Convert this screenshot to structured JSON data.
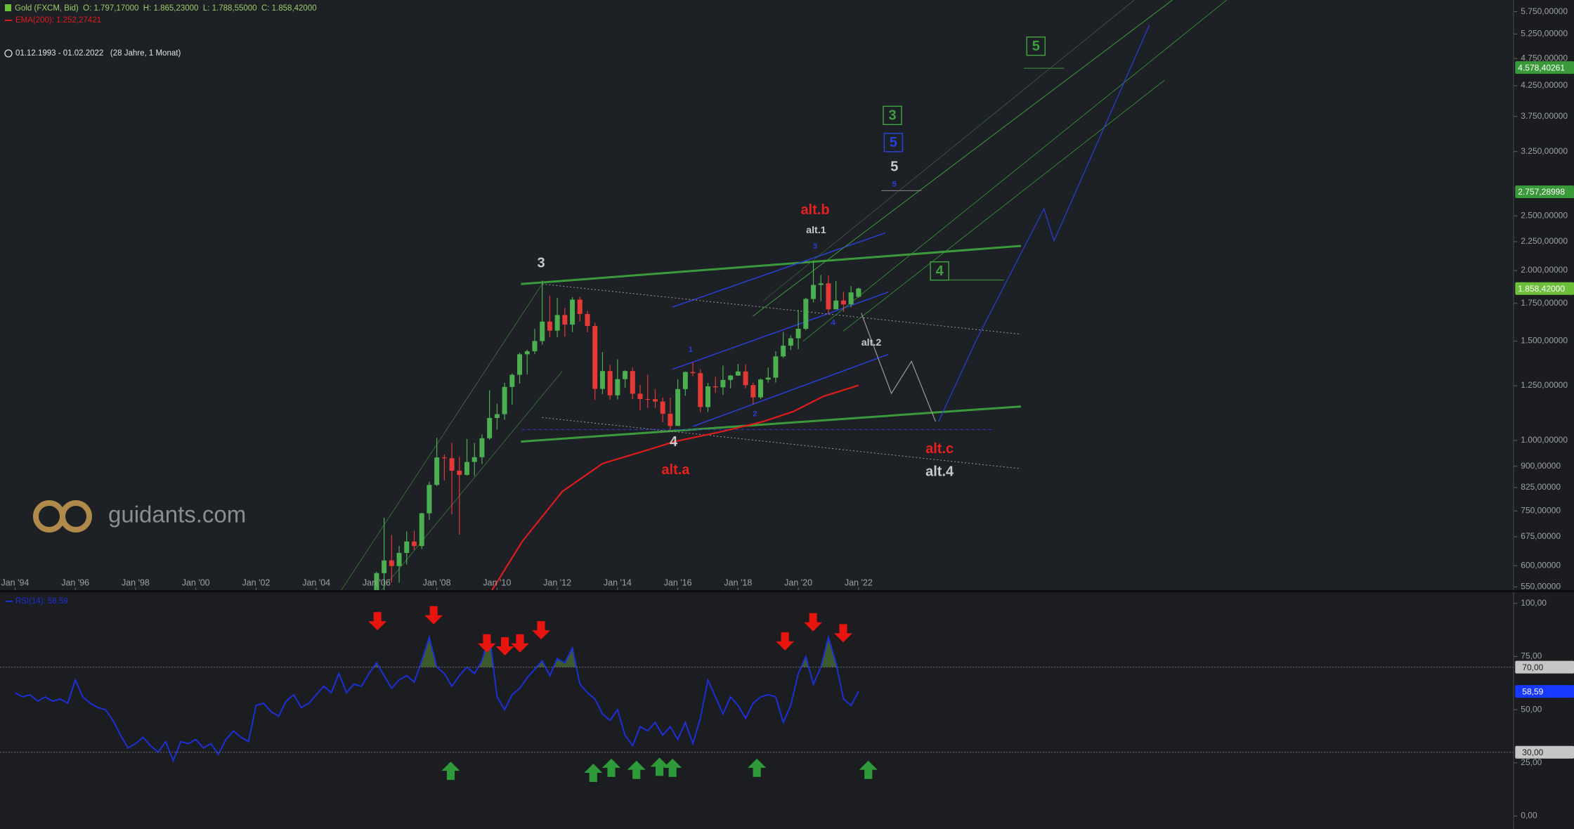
{
  "header": {
    "instrument": "Gold (FXCM, Bid)  O: 1.797,17000  H: 1.865,23000  L: 1.788,55000  C: 1.858,42000",
    "indicator": "EMA(200): 1.252,27421",
    "range": "01.12.1993 - 01.02.2022   (28 Jahre, 1 Monat)"
  },
  "logo": "guidants.com",
  "chart_data": [
    {
      "type": "candlestick",
      "log_scale": true,
      "grid": false,
      "up_color": "#4caf50",
      "down_color": "#e53935",
      "xlim": [
        "1993-07",
        "2043-10"
      ],
      "xticks": [
        {
          "value": "1994-01",
          "label": "Jan '94"
        },
        {
          "value": "1996-01",
          "label": "Jan '96"
        },
        {
          "value": "1998-01",
          "label": "Jan '98"
        },
        {
          "value": "2000-01",
          "label": "Jan '00"
        },
        {
          "value": "2002-01",
          "label": "Jan '02"
        },
        {
          "value": "2004-01",
          "label": "Jan '04"
        },
        {
          "value": "2006-01",
          "label": "Jan '06"
        },
        {
          "value": "2008-01",
          "label": "Jan '08"
        },
        {
          "value": "2010-01",
          "label": "Jan '10"
        },
        {
          "value": "2012-01",
          "label": "Jan '12"
        },
        {
          "value": "2014-01",
          "label": "Jan '14"
        },
        {
          "value": "2016-01",
          "label": "Jan '16"
        },
        {
          "value": "2018-01",
          "label": "Jan '18"
        },
        {
          "value": "2020-01",
          "label": "Jan '20"
        },
        {
          "value": "2022-01",
          "label": "Jan '22"
        }
      ],
      "ylim": [
        543,
        6030
      ],
      "yticks": [
        {
          "value": 5750,
          "label": "5.750,00000"
        },
        {
          "value": 5250,
          "label": "5.250,00000"
        },
        {
          "value": 4750,
          "label": "4.750,00000"
        },
        {
          "value": 4250,
          "label": "4.250,00000"
        },
        {
          "value": 3750,
          "label": "3.750,00000"
        },
        {
          "value": 3250,
          "label": "3.250,00000"
        },
        {
          "value": 2500,
          "label": "2.500,00000"
        },
        {
          "value": 2250,
          "label": "2.250,00000"
        },
        {
          "value": 2000,
          "label": "2.000,00000"
        },
        {
          "value": 1750,
          "label": "1.750,00000"
        },
        {
          "value": 1500,
          "label": "1.500,00000"
        },
        {
          "value": 1250,
          "label": "1.250,00000"
        },
        {
          "value": 1000,
          "label": "1.000,00000"
        },
        {
          "value": 900,
          "label": "900,00000"
        },
        {
          "value": 825,
          "label": "825,00000"
        },
        {
          "value": 750,
          "label": "750,00000"
        },
        {
          "value": 675,
          "label": "675,00000"
        },
        {
          "value": 600,
          "label": "600,00000"
        },
        {
          "value": 550,
          "label": "550,00000"
        }
      ],
      "x": [
        "2006-01",
        "2006-04",
        "2006-07",
        "2006-10",
        "2007-01",
        "2007-04",
        "2007-07",
        "2007-10",
        "2008-01",
        "2008-04",
        "2008-07",
        "2008-10",
        "2009-01",
        "2009-04",
        "2009-07",
        "2009-10",
        "2010-01",
        "2010-04",
        "2010-07",
        "2010-10",
        "2011-01",
        "2011-04",
        "2011-07",
        "2011-10",
        "2012-01",
        "2012-04",
        "2012-07",
        "2012-10",
        "2013-01",
        "2013-04",
        "2013-07",
        "2013-10",
        "2014-01",
        "2014-04",
        "2014-07",
        "2014-10",
        "2015-01",
        "2015-04",
        "2015-07",
        "2015-10",
        "2016-01",
        "2016-04",
        "2016-07",
        "2016-10",
        "2017-01",
        "2017-04",
        "2017-07",
        "2017-10",
        "2018-01",
        "2018-04",
        "2018-07",
        "2018-10",
        "2019-01",
        "2019-04",
        "2019-07",
        "2019-10",
        "2020-01",
        "2020-04",
        "2020-07",
        "2020-10",
        "2021-01",
        "2021-04",
        "2021-07",
        "2021-10",
        "2022-01"
      ],
      "open": [
        517,
        582,
        613,
        599,
        632,
        662,
        650,
        743,
        834,
        933,
        930,
        884,
        869,
        916,
        934,
        1009,
        1096,
        1113,
        1244,
        1307,
        1421,
        1439,
        1500,
        1624,
        1565,
        1668,
        1604,
        1776,
        1675,
        1595,
        1234,
        1327,
        1202,
        1284,
        1327,
        1210,
        1184,
        1183,
        1172,
        1115,
        1061,
        1233,
        1322,
        1316,
        1146,
        1247,
        1242,
        1280,
        1303,
        1325,
        1253,
        1192,
        1282,
        1292,
        1409,
        1472,
        1517,
        1577,
        1781,
        1886,
        1898,
        1707,
        1770,
        1742,
        1797.17
      ],
      "high": [
        585,
        730,
        680,
        650,
        690,
        692,
        745,
        845,
        1011,
        945,
        990,
        935,
        1006,
        990,
        1025,
        1227,
        1162,
        1265,
        1315,
        1430,
        1448,
        1577,
        1920,
        1803,
        1790,
        1718,
        1795,
        1796,
        1697,
        1617,
        1434,
        1361,
        1392,
        1332,
        1346,
        1255,
        1307,
        1232,
        1191,
        1191,
        1283,
        1325,
        1375,
        1337,
        1264,
        1296,
        1357,
        1307,
        1366,
        1365,
        1265,
        1287,
        1346,
        1439,
        1557,
        1535,
        1704,
        1789,
        2075,
        1965,
        1959,
        1916,
        1834,
        1877,
        1865.23
      ],
      "low": [
        513,
        542,
        560,
        560,
        603,
        640,
        642,
        723,
        830,
        850,
        740,
        681,
        866,
        865,
        908,
        1003,
        1045,
        1088,
        1157,
        1262,
        1309,
        1423,
        1478,
        1523,
        1523,
        1527,
        1555,
        1625,
        1554,
        1180,
        1208,
        1180,
        1182,
        1240,
        1183,
        1131,
        1142,
        1142,
        1077,
        1046,
        1061,
        1200,
        1300,
        1122,
        1123,
        1214,
        1204,
        1236,
        1302,
        1237,
        1160,
        1183,
        1266,
        1266,
        1400,
        1446,
        1451,
        1567,
        1757,
        1765,
        1677,
        1723,
        1691,
        1721,
        1788.55
      ],
      "close": [
        582,
        613,
        599,
        632,
        662,
        650,
        743,
        834,
        933,
        930,
        884,
        869,
        916,
        934,
        1009,
        1096,
        1113,
        1244,
        1307,
        1421,
        1439,
        1500,
        1624,
        1565,
        1668,
        1604,
        1776,
        1675,
        1595,
        1234,
        1327,
        1202,
        1284,
        1327,
        1210,
        1184,
        1183,
        1172,
        1115,
        1061,
        1233,
        1322,
        1316,
        1146,
        1247,
        1242,
        1280,
        1303,
        1325,
        1253,
        1192,
        1282,
        1292,
        1409,
        1472,
        1517,
        1577,
        1781,
        1886,
        1898,
        1707,
        1770,
        1742,
        1829,
        1858.42
      ],
      "ema": {
        "color": "#e01b1b",
        "x": [
          "2009-11",
          "2010-11",
          "2012-03",
          "2013-07",
          "2014-11",
          "2015-12",
          "2017-07",
          "2018-11",
          "2019-11",
          "2020-11",
          "2022-01"
        ],
        "values": [
          543,
          662,
          812,
          910,
          956,
          996,
          1038,
          1080,
          1125,
          1197,
          1252.27421
        ]
      },
      "price_labels": [
        {
          "value": 4578.40261,
          "label": "4.578,40261",
          "color": "#3a9a3a"
        },
        {
          "value": 2757.28998,
          "label": "2.757,28998",
          "color": "#3a9a3a"
        },
        {
          "value": 1858.42,
          "label": "1.858,42000",
          "color": "#6cbf3a"
        }
      ],
      "annotations": [
        {
          "text": "3",
          "color": "#c9c9c9"
        },
        {
          "text": "4",
          "color": "#c9c9c9"
        },
        {
          "text": "alt.a",
          "color": "#e8201e"
        },
        {
          "text": "alt.b",
          "color": "#e8201e"
        },
        {
          "text": "alt.1",
          "color": "#c9c9c9"
        },
        {
          "text": "alt.2",
          "color": "#c9c9c9"
        },
        {
          "text": "alt.c",
          "color": "#e8201e"
        },
        {
          "text": "alt.4",
          "color": "#c9c9c9"
        },
        {
          "text": "5",
          "color": "#c9c9c9"
        },
        {
          "text": "5",
          "color": "#2a3fd8",
          "style": "box"
        },
        {
          "text": "3",
          "color": "#3f9e3f",
          "style": "box"
        },
        {
          "text": "4",
          "color": "#3f9e3f",
          "style": "box"
        },
        {
          "text": "5",
          "color": "#3f9e3f",
          "style": "box"
        },
        {
          "text": "1",
          "color": "#2a3fd8"
        },
        {
          "text": "2",
          "color": "#2a3fd8"
        },
        {
          "text": "3",
          "color": "#2a3fd8"
        },
        {
          "text": "4",
          "color": "#2a3fd8"
        },
        {
          "text": "5",
          "color": "#2a3fd8"
        }
      ]
    },
    {
      "type": "line",
      "grid": false,
      "xlim": [
        "1993-07",
        "2043-10"
      ],
      "ylim": [
        -6.1,
        105.2
      ],
      "yticks": [
        {
          "value": 100,
          "label": "100,00"
        },
        {
          "value": 75,
          "label": "75,00"
        },
        {
          "value": 50,
          "label": "50,00"
        },
        {
          "value": 25,
          "label": "25,00"
        },
        {
          "value": 0,
          "label": "0,00"
        }
      ],
      "bands": [
        {
          "value": 70,
          "label": "70,00"
        },
        {
          "value": 30,
          "label": "30,00"
        }
      ],
      "last_value_label": {
        "value": 58.59,
        "label": "58,59"
      },
      "x": [
        "1994-01",
        "1994-04",
        "1994-07",
        "1994-10",
        "1995-01",
        "1995-04",
        "1995-07",
        "1995-10",
        "1996-01",
        "1996-04",
        "1996-07",
        "1996-10",
        "1997-01",
        "1997-04",
        "1997-07",
        "1997-10",
        "1998-01",
        "1998-04",
        "1998-07",
        "1998-10",
        "1999-01",
        "1999-04",
        "1999-07",
        "1999-10",
        "2000-01",
        "2000-04",
        "2000-07",
        "2000-10",
        "2001-01",
        "2001-04",
        "2001-07",
        "2001-10",
        "2002-01",
        "2002-04",
        "2002-07",
        "2002-10",
        "2003-01",
        "2003-04",
        "2003-07",
        "2003-10",
        "2004-01",
        "2004-04",
        "2004-07",
        "2004-10",
        "2005-01",
        "2005-04",
        "2005-07",
        "2005-10",
        "2006-01",
        "2006-04",
        "2006-07",
        "2006-10",
        "2007-01",
        "2007-04",
        "2007-07",
        "2007-10",
        "2008-01",
        "2008-04",
        "2008-07",
        "2008-10",
        "2009-01",
        "2009-04",
        "2009-07",
        "2009-10",
        "2010-01",
        "2010-04",
        "2010-07",
        "2010-10",
        "2011-01",
        "2011-04",
        "2011-07",
        "2011-10",
        "2012-01",
        "2012-04",
        "2012-07",
        "2012-10",
        "2013-01",
        "2013-04",
        "2013-07",
        "2013-10",
        "2014-01",
        "2014-04",
        "2014-07",
        "2014-10",
        "2015-01",
        "2015-04",
        "2015-07",
        "2015-10",
        "2016-01",
        "2016-04",
        "2016-07",
        "2016-10",
        "2017-01",
        "2017-04",
        "2017-07",
        "2017-10",
        "2018-01",
        "2018-04",
        "2018-07",
        "2018-10",
        "2019-01",
        "2019-04",
        "2019-07",
        "2019-10",
        "2020-01",
        "2020-04",
        "2020-07",
        "2020-10",
        "2021-01",
        "2021-04",
        "2021-07",
        "2021-10",
        "2022-01"
      ],
      "series": [
        {
          "name": "RSI(14): 58,59",
          "color": "#1d2fd6",
          "fill_above": "#3c5a2e",
          "values": [
            58,
            56,
            57,
            54,
            56,
            54,
            55,
            53,
            64,
            56,
            53,
            51,
            50,
            45,
            38,
            32,
            34,
            37,
            33,
            30,
            35,
            26,
            35,
            34,
            36,
            32,
            34,
            29,
            36,
            40,
            37,
            35,
            52,
            53,
            49,
            47,
            54,
            57,
            51,
            53,
            57,
            61,
            58,
            67,
            58,
            62,
            61,
            67,
            72,
            66,
            60,
            64,
            66,
            63,
            73,
            84,
            70,
            67,
            61,
            66,
            70,
            67,
            73,
            85,
            56,
            50,
            57,
            60,
            65,
            69,
            73,
            66,
            74,
            72,
            79,
            62,
            58,
            55,
            48,
            45,
            50,
            38,
            33,
            42,
            40,
            44,
            38,
            42,
            36,
            44,
            34,
            46,
            64,
            56,
            48,
            56,
            52,
            46,
            53,
            56,
            57,
            56,
            44,
            52,
            67,
            75,
            62,
            70,
            84,
            72,
            55,
            52,
            58.59
          ]
        }
      ]
    }
  ]
}
